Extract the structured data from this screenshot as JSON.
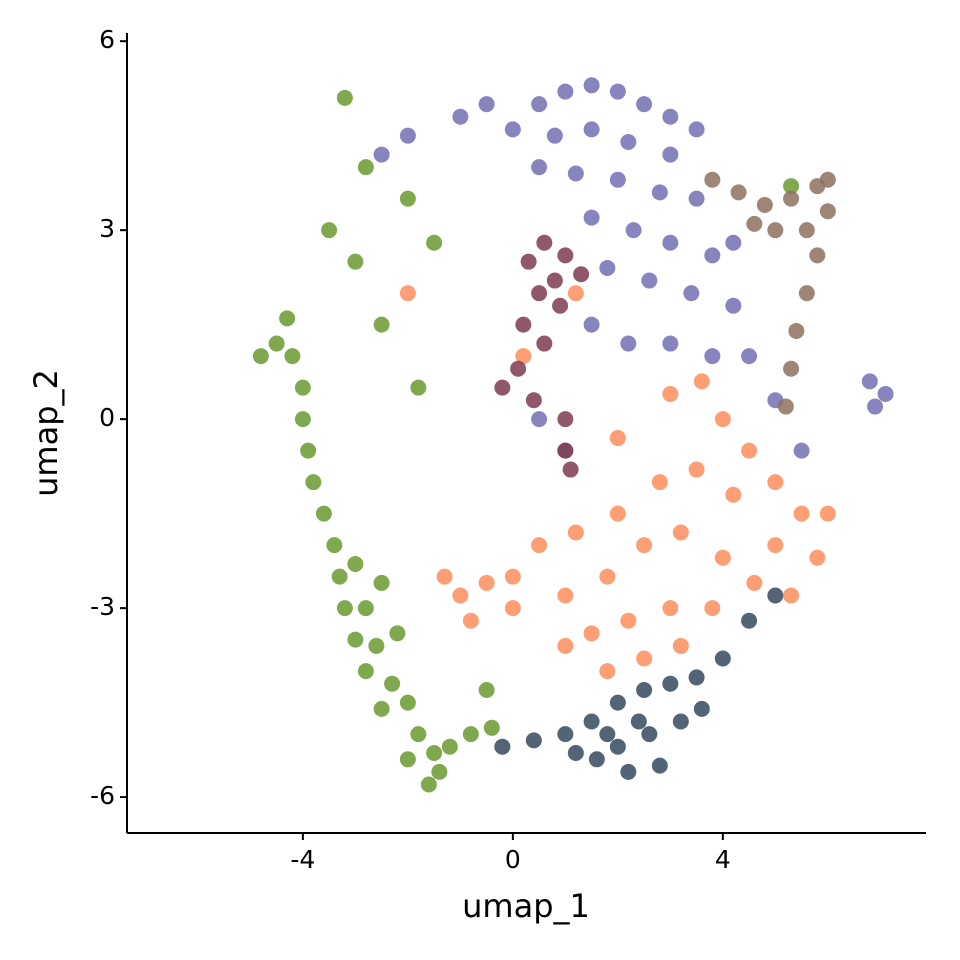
{
  "chart_data": {
    "type": "scatter",
    "xlabel": "umap_1",
    "ylabel": "umap_2",
    "xlim": [
      -7.35,
      7.87
    ],
    "ylim": [
      -6.57,
      6.13
    ],
    "xticks": [
      -4,
      0,
      4
    ],
    "yticks": [
      -6,
      -3,
      0,
      3,
      6
    ],
    "grid": false,
    "series": [
      {
        "color": "#6a9a30",
        "x": [
          -4.2,
          -4,
          -4,
          -3.9,
          -3.8,
          -3.6,
          -3.4,
          -3.3,
          -3,
          -3.2,
          -2.8,
          -2.5,
          -3,
          -2.6,
          -2.2,
          -2.8,
          -2.3,
          -2,
          -2.5,
          -1.8,
          -1.5,
          -1.2,
          -0.8,
          -0.4,
          -1.6,
          -2,
          -1.4,
          -4.5,
          -4.3,
          -4.8,
          -3.5,
          -3,
          -2.8,
          -3.2,
          -2,
          -1.5,
          -2.5,
          -1.8,
          -0.5,
          5.3
        ],
        "values": [
          1,
          0.5,
          0,
          -0.5,
          -1,
          -1.5,
          -2,
          -2.5,
          -2.3,
          -3,
          -3,
          -2.6,
          -3.5,
          -3.6,
          -3.4,
          -4,
          -4.2,
          -4.5,
          -4.6,
          -5,
          -5.3,
          -5.2,
          -5,
          -4.9,
          -5.8,
          -5.4,
          -5.6,
          1.2,
          1.6,
          1,
          3,
          2.5,
          4,
          5.1,
          3.5,
          2.8,
          1.5,
          0.5,
          -4.3,
          3.7
        ]
      },
      {
        "color": "#736fb3",
        "x": [
          0.5,
          1,
          1.5,
          2,
          2.5,
          3,
          -1,
          -0.5,
          0,
          0.8,
          1.5,
          2.2,
          3,
          3.5,
          0.5,
          1.2,
          2,
          2.8,
          3.5,
          1.5,
          2.3,
          3,
          3.8,
          4.2,
          1.8,
          2.6,
          3.4,
          4.2,
          4.5,
          1.5,
          2.2,
          3,
          3.8,
          0.5,
          1,
          5,
          5.5,
          6.8,
          7.1,
          6.9,
          -2,
          -2.5
        ],
        "values": [
          5,
          5.2,
          5.3,
          5.2,
          5,
          4.8,
          4.8,
          5,
          4.6,
          4.5,
          4.6,
          4.4,
          4.2,
          4.6,
          4,
          3.9,
          3.8,
          3.6,
          3.5,
          3.2,
          3,
          2.8,
          2.6,
          2.8,
          2.4,
          2.2,
          2,
          1.8,
          1,
          1.5,
          1.2,
          1.2,
          1,
          0,
          -0.5,
          0.3,
          -0.5,
          0.6,
          0.4,
          0.2,
          4.5,
          4.2
        ]
      },
      {
        "color": "#fd8d5c",
        "x": [
          2,
          3,
          3.6,
          4,
          4.5,
          5,
          5.5,
          6,
          5.8,
          5,
          4.2,
          3.5,
          2.8,
          2,
          1.2,
          0.5,
          0,
          -0.5,
          -1,
          -1.3,
          -0.8,
          0,
          1,
          1.8,
          2.5,
          3.2,
          4,
          4.6,
          5.3,
          3.8,
          3,
          2.2,
          1.5,
          1,
          1.8,
          2.5,
          3.2,
          0.2,
          1.2,
          -2
        ],
        "values": [
          -0.3,
          0.4,
          0.6,
          0,
          -0.5,
          -1,
          -1.5,
          -1.5,
          -2.2,
          -2,
          -1.2,
          -0.8,
          -1,
          -1.5,
          -1.8,
          -2,
          -2.5,
          -2.6,
          -2.8,
          -2.5,
          -3.2,
          -3,
          -2.8,
          -2.5,
          -2,
          -1.8,
          -2.2,
          -2.6,
          -2.8,
          -3,
          -3,
          -3.2,
          -3.4,
          -3.6,
          -4,
          -3.8,
          -3.6,
          1,
          2,
          2
        ]
      },
      {
        "color": "#7d3b4f",
        "x": [
          0.3,
          0.6,
          1,
          1.3,
          0.5,
          0.9,
          0.2,
          0.6,
          0.1,
          -0.2,
          0.4,
          1,
          1,
          1.1,
          0.8
        ],
        "values": [
          2.5,
          2.8,
          2.6,
          2.3,
          2,
          1.8,
          1.5,
          1.2,
          0.8,
          0.5,
          0.3,
          0,
          -0.5,
          -0.8,
          2.2
        ]
      },
      {
        "color": "#8e705e",
        "x": [
          3.8,
          4.3,
          4.8,
          5.3,
          5.8,
          6,
          5.6,
          5,
          4.6,
          5.8,
          5.6,
          5.4,
          5.3,
          5.2,
          6
        ],
        "values": [
          3.8,
          3.6,
          3.4,
          3.5,
          3.7,
          3.3,
          3,
          3,
          3.1,
          2.6,
          2,
          1.4,
          0.8,
          0.2,
          3.8
        ]
      },
      {
        "color": "#34495e",
        "x": [
          1,
          1.5,
          2,
          2.5,
          3,
          3.5,
          2,
          2.6,
          3.2,
          1.6,
          2.2,
          2.8,
          1.2,
          3.6,
          0.4,
          -0.2,
          4,
          4.5,
          5,
          2.4,
          1.8
        ],
        "values": [
          -5,
          -4.8,
          -4.5,
          -4.3,
          -4.2,
          -4.1,
          -5.2,
          -5,
          -4.8,
          -5.4,
          -5.6,
          -5.5,
          -5.3,
          -4.6,
          -5.1,
          -5.2,
          -3.8,
          -3.2,
          -2.8,
          -4.8,
          -5
        ]
      }
    ]
  }
}
